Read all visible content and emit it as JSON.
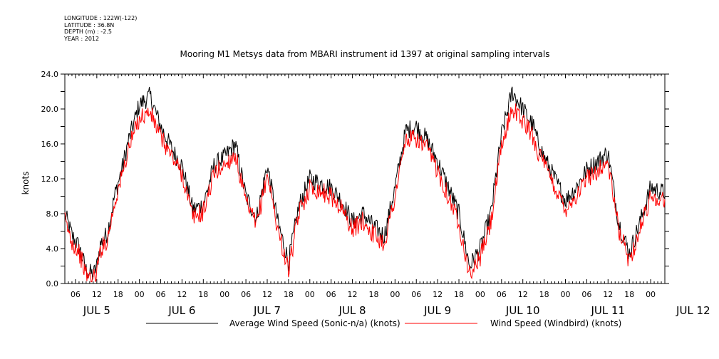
{
  "metadata": {
    "longitude": "LONGITUDE : 122W(-122)",
    "latitude": "LATITUDE : 36.8N",
    "depth": "DEPTH (m) : -2.5",
    "year": "YEAR : 2012"
  },
  "chart_data": {
    "type": "line",
    "title": "Mooring M1 Metsys data from MBARI instrument id 1397 at original sampling intervals",
    "xlabel": "",
    "ylabel": "knots",
    "ylim": [
      0,
      24
    ],
    "ytick_labels": [
      "0.0",
      "4.0",
      "8.0",
      "12.0",
      "16.0",
      "20.0",
      "24.0"
    ],
    "xlim_hours": [
      3,
      172
    ],
    "hour_tick_labels": [
      "06",
      "12",
      "18",
      "00",
      "06",
      "12",
      "18",
      "00",
      "06",
      "12",
      "18",
      "00",
      "06",
      "12",
      "18",
      "00",
      "06",
      "12",
      "18",
      "00",
      "06",
      "12",
      "18",
      "00",
      "06",
      "12",
      "18",
      "00"
    ],
    "day_labels": [
      "JUL 5",
      "JUL 6",
      "JUL 7",
      "JUL 8",
      "JUL 9",
      "JUL 10",
      "JUL 11",
      "JUL 12"
    ],
    "grid": false,
    "legend_position": "bottom",
    "x_hours": [
      3,
      5,
      7,
      9,
      11,
      12,
      13,
      15,
      17,
      19,
      21,
      24,
      27,
      30,
      33,
      36,
      39,
      42,
      45,
      48,
      51,
      54,
      57,
      60,
      63,
      66,
      69,
      72,
      75,
      78,
      81,
      84,
      87,
      90,
      93,
      96,
      99,
      102,
      105,
      108,
      111,
      114,
      117,
      120,
      123,
      126,
      129,
      132,
      135,
      136,
      138,
      141,
      144,
      147,
      150,
      153,
      156,
      159,
      162,
      165,
      168,
      171
    ],
    "series": [
      {
        "name": "Average Wind Speed (Sonic-n/a) (knots)",
        "color": "#000000",
        "values": [
          8.0,
          5.5,
          4.2,
          1.5,
          1.0,
          2.0,
          4.5,
          5.8,
          10.0,
          13.0,
          16.5,
          20.5,
          21.5,
          18.0,
          15.5,
          13.5,
          8.5,
          9.0,
          13.5,
          14.5,
          16.0,
          10.0,
          7.5,
          13.5,
          7.0,
          2.5,
          9.0,
          12.0,
          11.5,
          11.0,
          9.5,
          7.0,
          8.0,
          6.5,
          5.5,
          11.0,
          17.5,
          18.0,
          16.5,
          14.0,
          11.0,
          8.0,
          2.0,
          4.0,
          8.0,
          17.0,
          22.0,
          20.0,
          18.0,
          16.5,
          14.5,
          12.0,
          9.5,
          11.0,
          13.0,
          14.0,
          15.0,
          7.0,
          3.5,
          7.0,
          11.0,
          10.5
        ]
      },
      {
        "name": "Wind Speed (Windbird) (knots)",
        "color": "#ff0000",
        "values": [
          7.2,
          4.8,
          3.6,
          1.0,
          0.5,
          1.3,
          3.8,
          5.1,
          9.2,
          12.2,
          15.5,
          19.0,
          19.6,
          16.8,
          14.6,
          12.6,
          7.6,
          8.2,
          12.6,
          13.6,
          14.8,
          9.2,
          6.6,
          12.6,
          6.2,
          1.5,
          8.2,
          11.0,
          10.6,
          10.0,
          8.6,
          6.2,
          7.2,
          5.6,
          4.6,
          10.0,
          16.4,
          16.6,
          15.4,
          13.0,
          10.0,
          7.0,
          1.0,
          3.0,
          7.0,
          15.6,
          20.2,
          18.6,
          16.8,
          15.4,
          13.6,
          11.0,
          8.6,
          10.0,
          12.0,
          13.0,
          13.8,
          6.2,
          2.6,
          6.2,
          10.0,
          9.6
        ]
      }
    ]
  }
}
